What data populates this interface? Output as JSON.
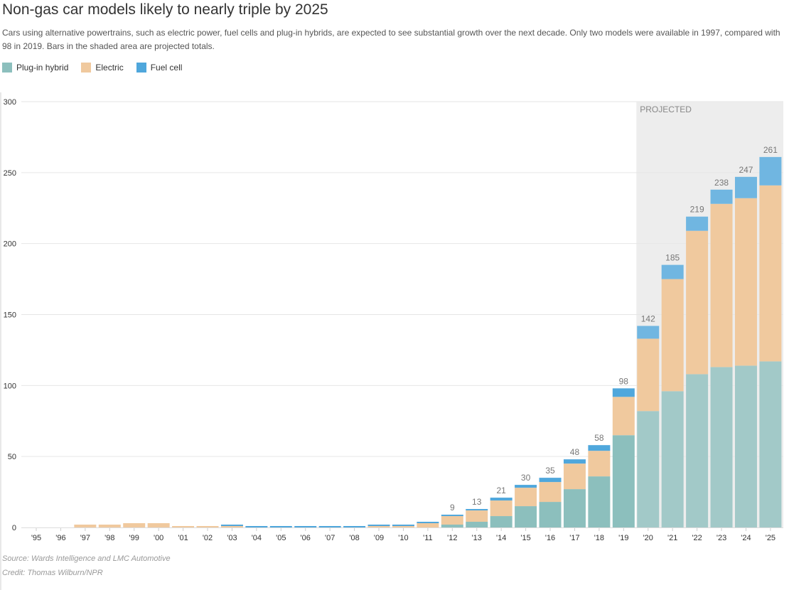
{
  "title": "Non-gas car models likely to nearly triple by 2025",
  "subtitle": "Cars using alternative powertrains, such as electric power, fuel cells and plug-in hybrids, are expected to see substantial growth over the next decade. Only two models were available in 1997, compared with 98 in 2019. Bars in the shaded area are projected totals.",
  "source": "Source: Wards Intelligence and LMC Automotive",
  "credit": "Credit: Thomas Wilburn/NPR",
  "colors": {
    "phev": "#8cbfbd",
    "phev_proj": "#a2c9c8",
    "electric": "#f0c99e",
    "fuel": "#4fa7dc",
    "fuel_proj": "#70b6e1",
    "shade": "#ededed"
  },
  "chart_data": {
    "type": "bar",
    "stacked": true,
    "title": "Non-gas car models likely to nearly triple by 2025",
    "xlabel": "",
    "ylabel": "",
    "ylim": [
      0,
      300
    ],
    "yticks": [
      0,
      50,
      100,
      150,
      200,
      250,
      300
    ],
    "grid": true,
    "legend": "top-left",
    "projected_label": "PROJECTED",
    "projected_from": "'20",
    "categories": [
      "'95",
      "'96",
      "'97",
      "'98",
      "'99",
      "'00",
      "'01",
      "'02",
      "'03",
      "'04",
      "'05",
      "'06",
      "'07",
      "'08",
      "'09",
      "'10",
      "'11",
      "'12",
      "'13",
      "'14",
      "'15",
      "'16",
      "'17",
      "'18",
      "'19",
      "'20",
      "'21",
      "'22",
      "'23",
      "'24",
      "'25"
    ],
    "series": [
      {
        "name": "Plug-in hybrid",
        "values": [
          0,
          0,
          0,
          0,
          0,
          0,
          0,
          0,
          0,
          0,
          0,
          0,
          0,
          0,
          0,
          0,
          0,
          2,
          4,
          8,
          15,
          18,
          27,
          36,
          65,
          82,
          96,
          108,
          113,
          114,
          117
        ]
      },
      {
        "name": "Electric",
        "values": [
          0,
          0,
          2,
          2,
          3,
          3,
          1,
          1,
          1,
          0,
          0,
          0,
          0,
          0,
          1,
          1,
          3,
          6,
          8,
          11,
          13,
          14,
          18,
          18,
          27,
          51,
          79,
          101,
          115,
          118,
          124
        ]
      },
      {
        "name": "Fuel cell",
        "values": [
          0,
          0,
          0,
          0,
          0,
          0,
          0,
          0,
          1,
          1,
          1,
          1,
          1,
          1,
          1,
          1,
          1,
          1,
          1,
          2,
          2,
          3,
          3,
          4,
          6,
          9,
          10,
          10,
          10,
          15,
          20
        ]
      }
    ],
    "totals_labeled": {
      "'12": "9",
      "'13": "13",
      "'14": "21",
      "'15": "30",
      "'16": "35",
      "'17": "48",
      "'18": "58",
      "'19": "98",
      "'20": "142",
      "'21": "185",
      "'22": "219",
      "'23": "238",
      "'24": "247",
      "'25": "261"
    }
  }
}
